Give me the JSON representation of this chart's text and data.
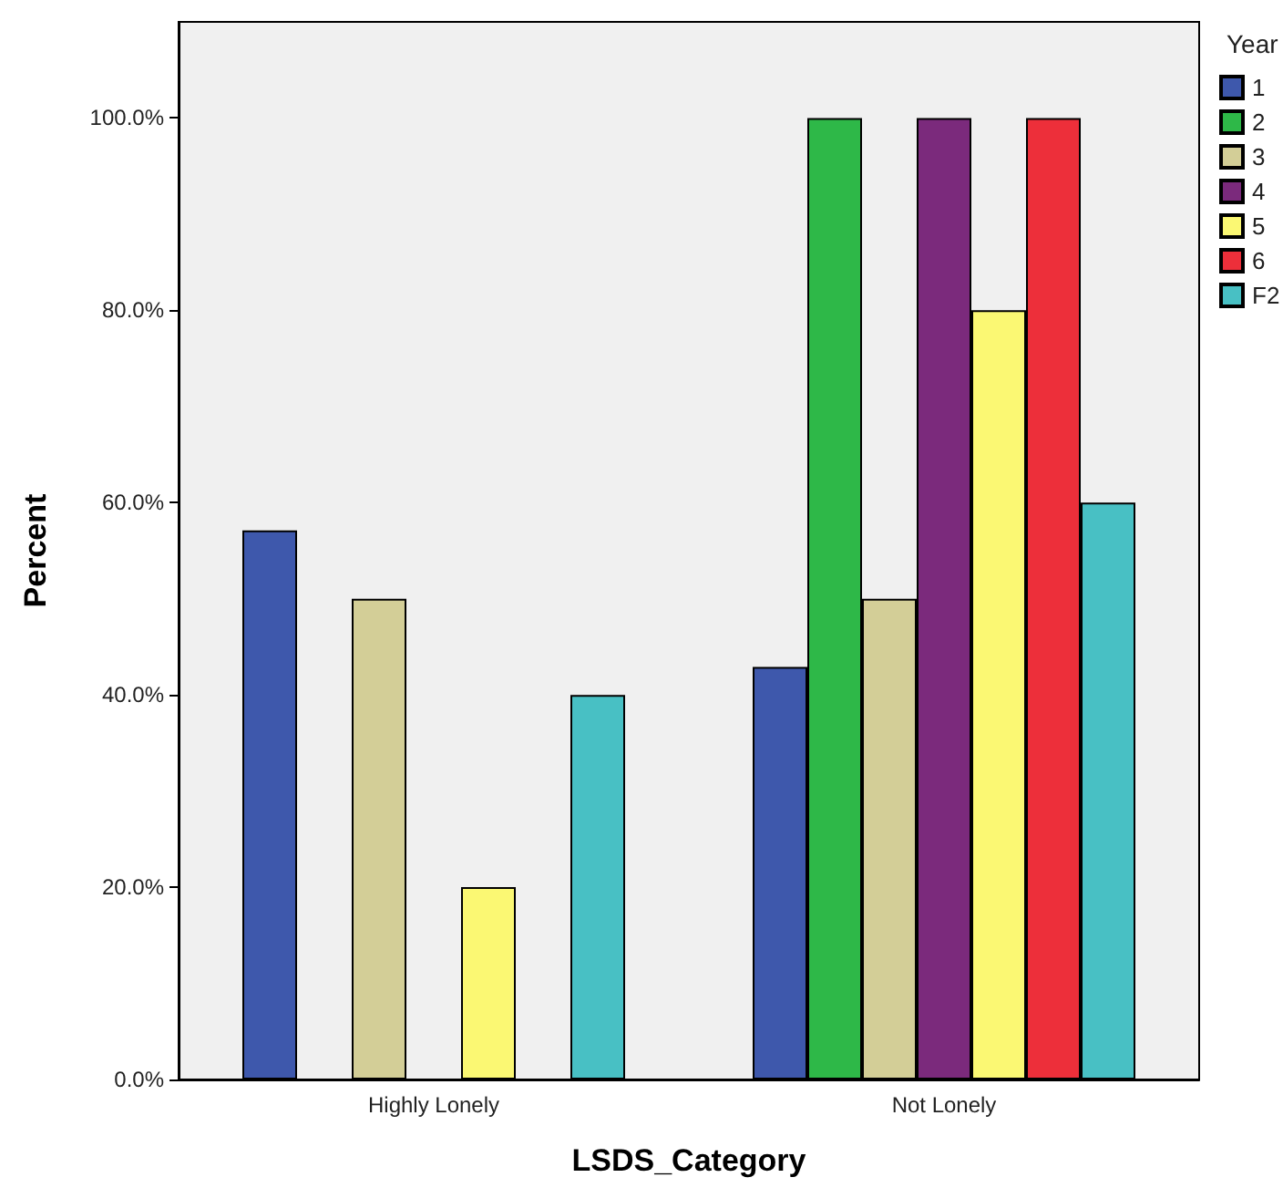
{
  "chart_data": {
    "type": "bar",
    "xlabel": "LSDS_Category",
    "ylabel": "Percent",
    "legend_title": "Year",
    "categories": [
      "Highly Lonely",
      "Not Lonely"
    ],
    "series": [
      {
        "name": "1",
        "color": "#3e58ac",
        "values": [
          57.1,
          42.9
        ]
      },
      {
        "name": "2",
        "color": "#2eb848",
        "values": [
          null,
          100
        ]
      },
      {
        "name": "3",
        "color": "#d3ce97",
        "values": [
          50,
          50
        ]
      },
      {
        "name": "4",
        "color": "#7b2a7c",
        "values": [
          null,
          100
        ]
      },
      {
        "name": "5",
        "color": "#fbf873",
        "values": [
          20,
          80
        ]
      },
      {
        "name": "6",
        "color": "#ed2f3a",
        "values": [
          null,
          100
        ]
      },
      {
        "name": "F2",
        "color": "#48c0c4",
        "values": [
          40,
          60
        ]
      }
    ],
    "ylim": [
      0,
      110
    ],
    "yticks": [
      {
        "value": 0,
        "label": "0.0%"
      },
      {
        "value": 20,
        "label": "20.0%"
      },
      {
        "value": 40,
        "label": "40.0%"
      },
      {
        "value": 60,
        "label": "60.0%"
      },
      {
        "value": 80,
        "label": "80.0%"
      },
      {
        "value": 100,
        "label": "100.0%"
      }
    ],
    "grid": false,
    "legend": "top right"
  }
}
